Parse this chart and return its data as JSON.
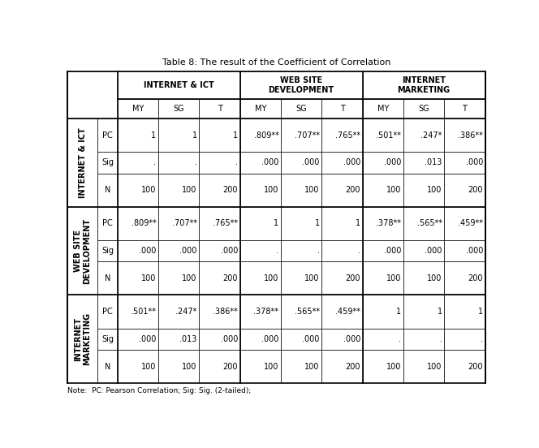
{
  "title": "Table 8: The result of the Coefficient of Correlation",
  "note": "Note:  PC: Pearson Correlation; Sig: Sig. (2-tailed);",
  "col_groups": [
    "INTERNET & ICT",
    "WEB SITE\nDEVELOPMENT",
    "INTERNET\nMARKETING"
  ],
  "col_subheaders": [
    "MY",
    "SG",
    "T"
  ],
  "row_groups": [
    "INTERNET & ICT",
    "WEB SITE\nDEVELOPMENT",
    "INTERNET\nMARKETING"
  ],
  "row_subheaders": [
    "PC",
    "Sig",
    "N"
  ],
  "data": [
    [
      [
        "1",
        "1",
        "1",
        ".809**",
        ".707**",
        ".765**",
        ".501**",
        ".247*",
        ".386**"
      ],
      [
        ".",
        ".",
        ".",
        ".000",
        ".000",
        ".000",
        ".000",
        ".013",
        ".000"
      ],
      [
        "100",
        "100",
        "200",
        "100",
        "100",
        "200",
        "100",
        "100",
        "200"
      ]
    ],
    [
      [
        ".809**",
        ".707**",
        ".765**",
        "1",
        "1",
        "1",
        ".378**",
        ".565**",
        ".459**"
      ],
      [
        ".000",
        ".000",
        ".000",
        ".",
        ".",
        ".",
        ".000",
        ".000",
        ".000"
      ],
      [
        "100",
        "100",
        "200",
        "100",
        "100",
        "200",
        "100",
        "100",
        "200"
      ]
    ],
    [
      [
        ".501**",
        ".247*",
        ".386**",
        ".378**",
        ".565**",
        ".459**",
        "1",
        "1",
        "1"
      ],
      [
        ".000",
        ".013",
        ".000",
        ".000",
        ".000",
        ".000",
        ".",
        ".",
        "."
      ],
      [
        "100",
        "100",
        "200",
        "100",
        "100",
        "200",
        "100",
        "100",
        "200"
      ]
    ]
  ],
  "line_color": "#000000",
  "header_fontsize": 7.0,
  "cell_fontsize": 7.0,
  "title_fontsize": 8.0,
  "note_fontsize": 6.5
}
